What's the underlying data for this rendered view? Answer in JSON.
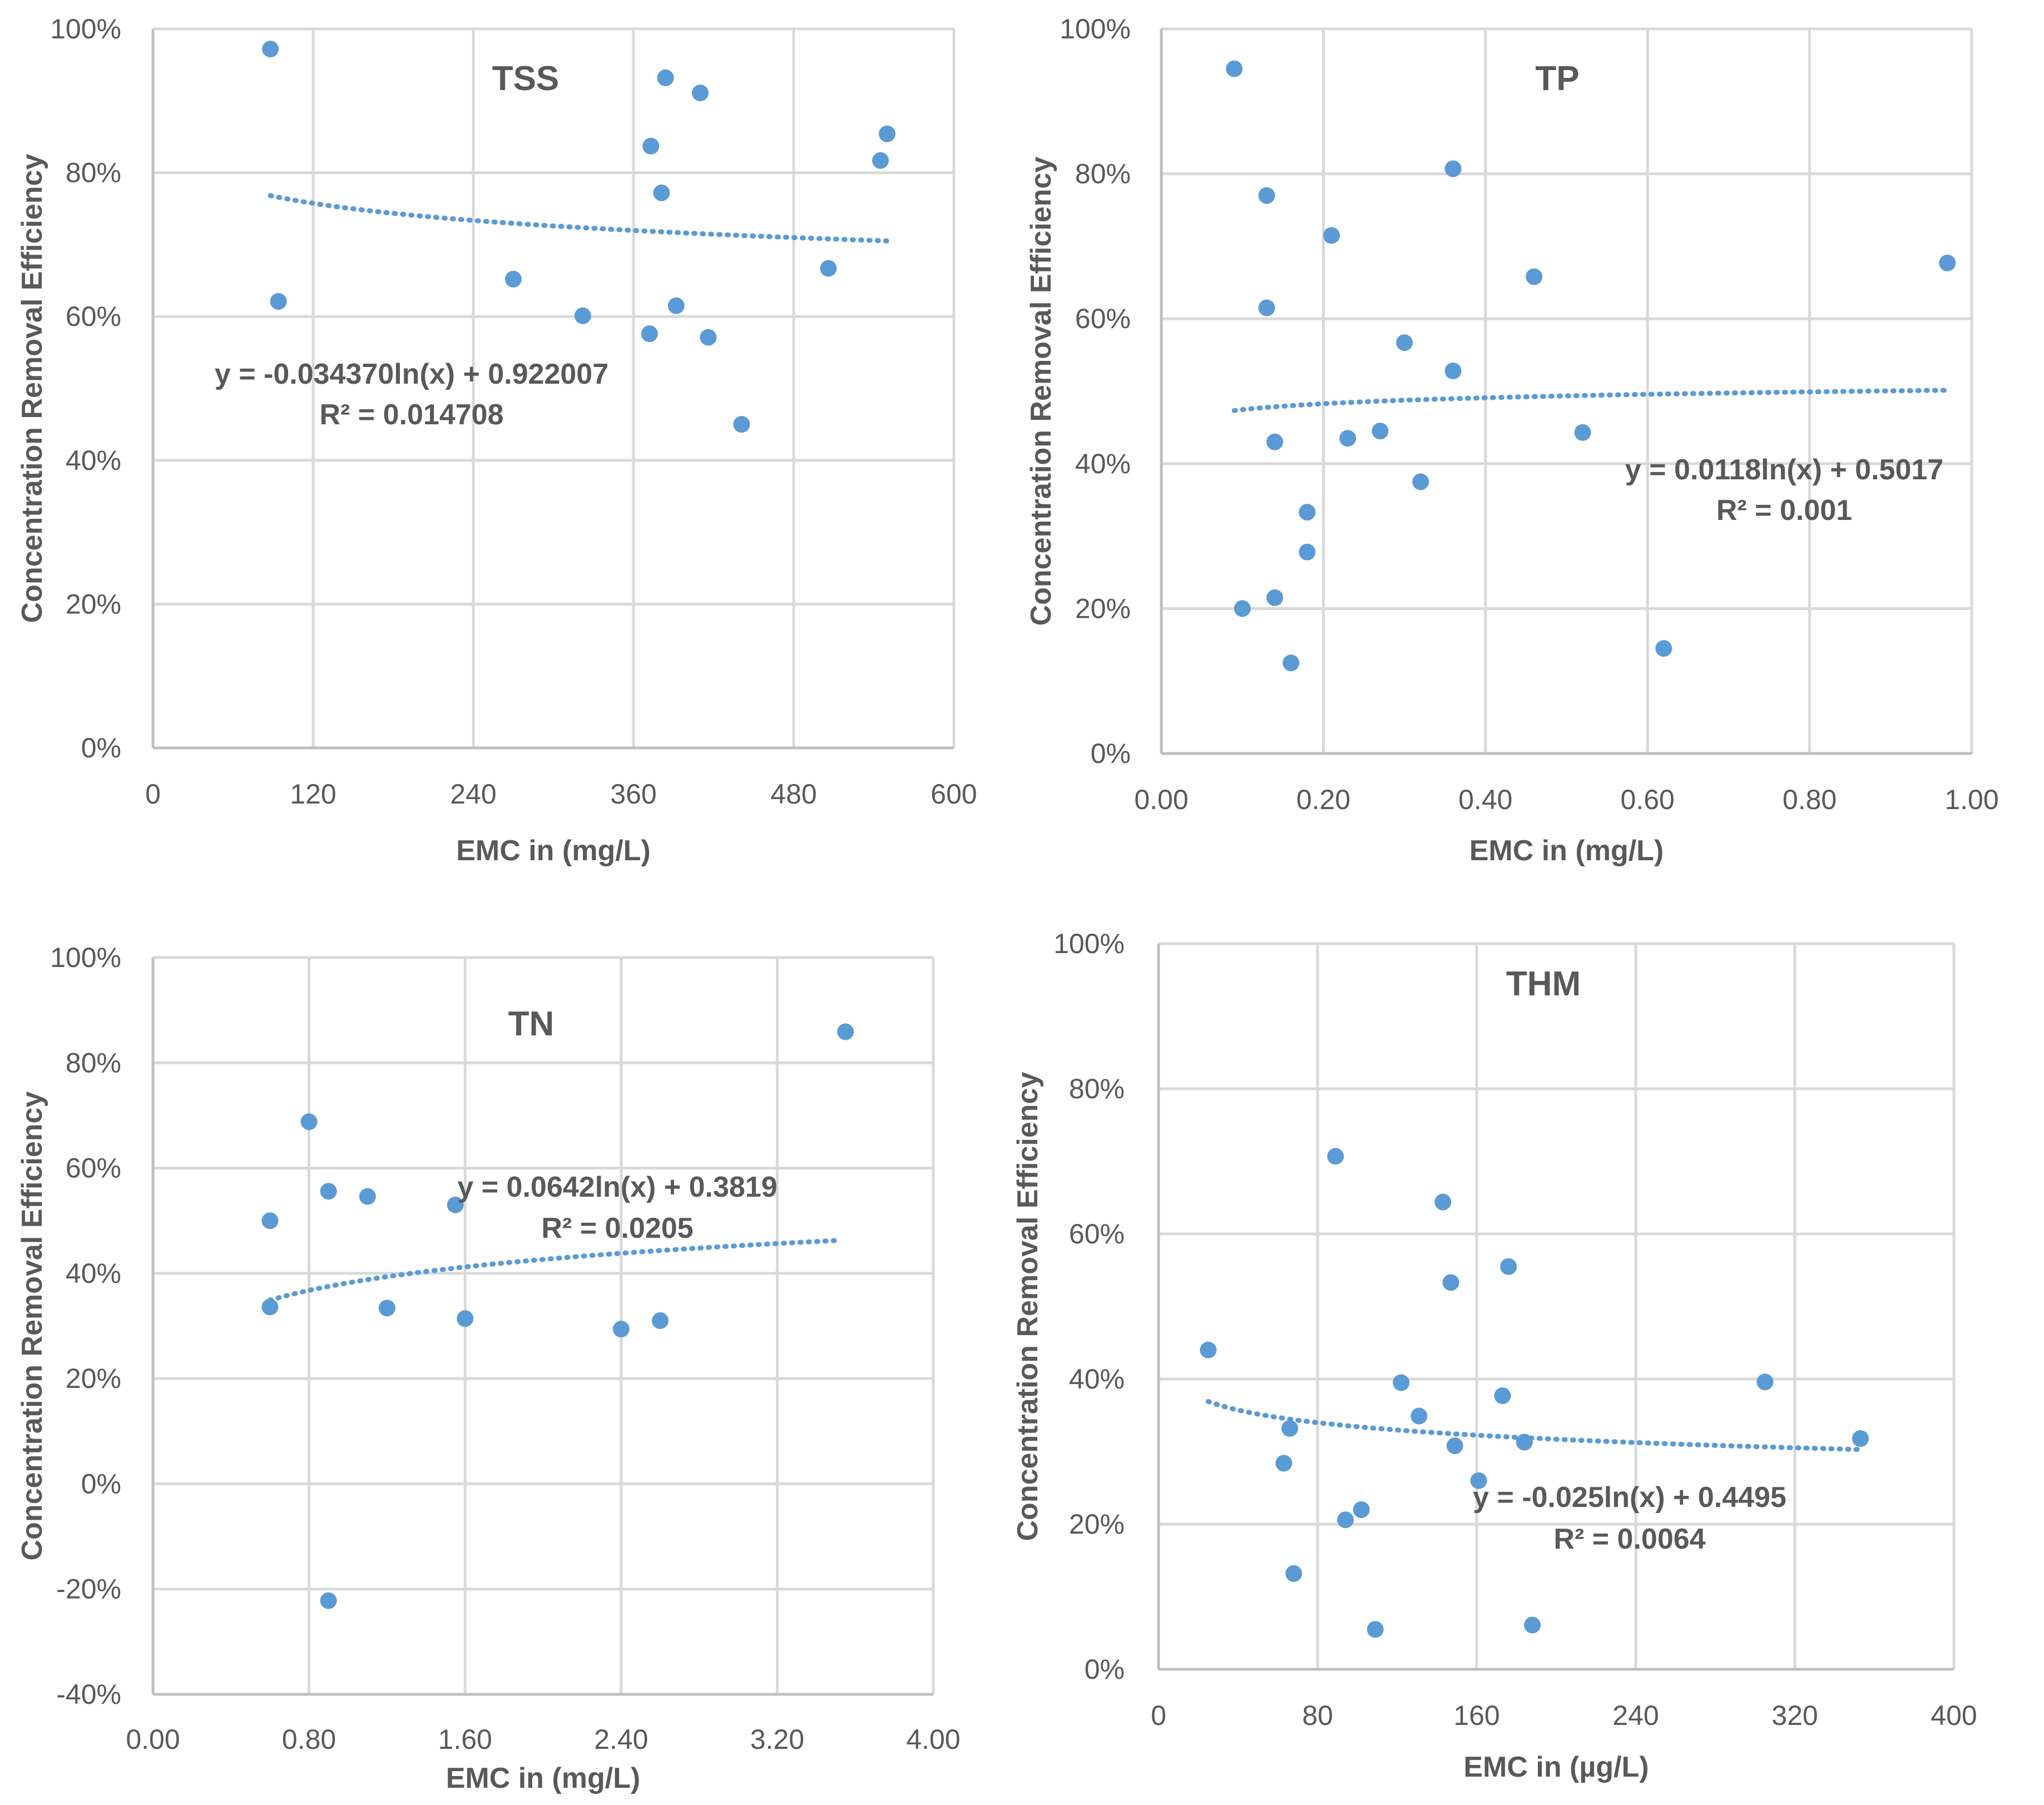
{
  "chart_data": [
    {
      "type": "scatter",
      "title": "TSS",
      "xlabel": "EMC in (mg/L)",
      "ylabel": "Concentration Removal Efficiency",
      "xlim": [
        0,
        600
      ],
      "ylim": [
        0,
        1
      ],
      "x_ticks": [
        "0",
        "120",
        "240",
        "360",
        "480",
        "600"
      ],
      "y_ticks": [
        "0%",
        "20%",
        "40%",
        "60%",
        "80%",
        "100%"
      ],
      "equation": "y = -0.034370ln(x) + 0.922007",
      "r2": "R² = 0.014708",
      "trendline": {
        "type": "log",
        "a": -0.03437,
        "b": 0.922007,
        "x_range": [
          88,
          550
        ]
      },
      "x": [
        88,
        94,
        270,
        322,
        372,
        373,
        381,
        384,
        392,
        410,
        416,
        441,
        506,
        545,
        550
      ],
      "y": [
        0.972,
        0.621,
        0.652,
        0.601,
        0.576,
        0.837,
        0.772,
        0.932,
        0.615,
        0.911,
        0.571,
        0.45,
        0.667,
        0.817,
        0.854
      ]
    },
    {
      "type": "scatter",
      "title": "TP",
      "xlabel": "EMC in (mg/L)",
      "ylabel": "Concentration Removal Efficiency",
      "xlim": [
        0,
        1
      ],
      "ylim": [
        0,
        1
      ],
      "x_ticks": [
        "0.00",
        "0.20",
        "0.40",
        "0.60",
        "0.80",
        "1.00"
      ],
      "y_ticks": [
        "0%",
        "20%",
        "40%",
        "60%",
        "80%",
        "100%"
      ],
      "equation": "y = 0.0118ln(x) + 0.5017",
      "r2": "R² = 0.001",
      "trendline": {
        "type": "log",
        "a": 0.0118,
        "b": 0.5017,
        "x_range": [
          0.09,
          0.97
        ]
      },
      "x": [
        0.09,
        0.1,
        0.13,
        0.13,
        0.14,
        0.14,
        0.16,
        0.18,
        0.18,
        0.21,
        0.23,
        0.27,
        0.3,
        0.32,
        0.36,
        0.36,
        0.46,
        0.52,
        0.62,
        0.97
      ],
      "y": [
        0.945,
        0.2,
        0.77,
        0.615,
        0.43,
        0.215,
        0.125,
        0.333,
        0.278,
        0.715,
        0.435,
        0.445,
        0.567,
        0.375,
        0.807,
        0.528,
        0.658,
        0.443,
        0.145,
        0.677
      ]
    },
    {
      "type": "scatter",
      "title": "TN",
      "xlabel": "EMC in (mg/L)",
      "ylabel": "Concentration Removal Efficiency",
      "xlim": [
        0,
        4
      ],
      "ylim": [
        -0.4,
        1
      ],
      "x_ticks": [
        "0.00",
        "0.80",
        "1.60",
        "2.40",
        "3.20",
        "4.00"
      ],
      "y_ticks": [
        "-40%",
        "-20%",
        "0%",
        "20%",
        "40%",
        "60%",
        "80%",
        "100%"
      ],
      "equation": "y = 0.0642ln(x) + 0.3819",
      "r2": "R² = 0.0205",
      "trendline": {
        "type": "log",
        "a": 0.0642,
        "b": 0.3819,
        "x_range": [
          0.6,
          3.5
        ]
      },
      "x": [
        0.6,
        0.6,
        0.8,
        0.9,
        0.9,
        1.1,
        1.2,
        1.55,
        1.6,
        2.4,
        2.6,
        3.55
      ],
      "y": [
        0.5,
        0.336,
        0.688,
        0.556,
        -0.222,
        0.546,
        0.334,
        0.53,
        0.314,
        0.294,
        0.31,
        0.859
      ]
    },
    {
      "type": "scatter",
      "title": "THM",
      "xlabel": "EMC in (µg/L)",
      "ylabel": "Concentration Removal Efficiency",
      "xlim": [
        0,
        400
      ],
      "ylim": [
        0,
        1
      ],
      "x_ticks": [
        "0",
        "80",
        "160",
        "240",
        "320",
        "400"
      ],
      "y_ticks": [
        "0%",
        "20%",
        "40%",
        "60%",
        "80%",
        "100%"
      ],
      "equation": "y = -0.025ln(x) + 0.4495",
      "r2": "R² = 0.0064",
      "trendline": {
        "type": "log",
        "a": -0.025,
        "b": 0.4495,
        "x_range": [
          25,
          353
        ]
      },
      "x": [
        25,
        63,
        66,
        68,
        89,
        94,
        102,
        109,
        122,
        131,
        143,
        147,
        149,
        161,
        173,
        176,
        184,
        188,
        305,
        353
      ],
      "y": [
        0.44,
        0.284,
        0.332,
        0.132,
        0.707,
        0.206,
        0.22,
        0.055,
        0.395,
        0.349,
        0.644,
        0.533,
        0.308,
        0.26,
        0.377,
        0.555,
        0.313,
        0.061,
        0.396,
        0.318
      ]
    }
  ]
}
